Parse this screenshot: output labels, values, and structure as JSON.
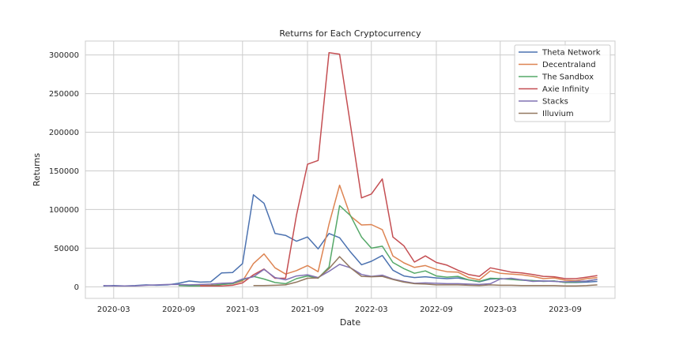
{
  "chart_data": {
    "type": "line",
    "title": "Returns for Each Cryptocurrency",
    "xlabel": "Date",
    "ylabel": "Returns",
    "ylim": [
      -15000,
      318000
    ],
    "xlim": [
      "2020-01-01",
      "2023-12-31"
    ],
    "grid": true,
    "legend_position": "top-right",
    "x_ticks": [
      "2020-03",
      "2020-09",
      "2021-03",
      "2021-09",
      "2022-03",
      "2022-09",
      "2023-03",
      "2023-09"
    ],
    "y_ticks": [
      0,
      50000,
      100000,
      150000,
      200000,
      250000,
      300000
    ],
    "y_tick_labels": [
      "0",
      "50000",
      "100000",
      "150000",
      "200000",
      "250000",
      "300000"
    ],
    "series": [
      {
        "name": "Theta Network",
        "color": "#4c72b0",
        "points": [
          [
            "2020-02-01",
            1000
          ],
          [
            "2020-03-01",
            1500
          ],
          [
            "2020-04-01",
            1000
          ],
          [
            "2020-05-01",
            1500
          ],
          [
            "2020-06-01",
            2500
          ],
          [
            "2020-07-01",
            2000
          ],
          [
            "2020-08-01",
            2500
          ],
          [
            "2020-09-01",
            4500
          ],
          [
            "2020-10-01",
            7500
          ],
          [
            "2020-11-01",
            6000
          ],
          [
            "2020-12-01",
            6500
          ],
          [
            "2021-01-01",
            18000
          ],
          [
            "2021-02-01",
            18500
          ],
          [
            "2021-03-01",
            30000
          ],
          [
            "2021-04-01",
            119000
          ],
          [
            "2021-05-01",
            108000
          ],
          [
            "2021-06-01",
            69000
          ],
          [
            "2021-07-01",
            66500
          ],
          [
            "2021-08-01",
            59000
          ],
          [
            "2021-09-01",
            64500
          ],
          [
            "2021-10-01",
            49000
          ],
          [
            "2021-11-01",
            69000
          ],
          [
            "2021-12-01",
            63500
          ],
          [
            "2022-01-01",
            45000
          ],
          [
            "2022-02-01",
            28500
          ],
          [
            "2022-03-01",
            33000
          ],
          [
            "2022-04-01",
            40500
          ],
          [
            "2022-05-01",
            21500
          ],
          [
            "2022-06-01",
            14000
          ],
          [
            "2022-07-01",
            12000
          ],
          [
            "2022-08-01",
            13000
          ],
          [
            "2022-09-01",
            11500
          ],
          [
            "2022-10-01",
            10500
          ],
          [
            "2022-11-01",
            11500
          ],
          [
            "2022-12-01",
            9000
          ],
          [
            "2023-01-01",
            6500
          ],
          [
            "2023-02-01",
            10000
          ],
          [
            "2023-03-01",
            10500
          ],
          [
            "2023-04-01",
            10000
          ],
          [
            "2023-05-01",
            9000
          ],
          [
            "2023-06-01",
            8000
          ],
          [
            "2023-07-01",
            7500
          ],
          [
            "2023-08-01",
            7500
          ],
          [
            "2023-09-01",
            5500
          ],
          [
            "2023-10-01",
            5500
          ],
          [
            "2023-11-01",
            6000
          ],
          [
            "2023-12-01",
            7000
          ]
        ]
      },
      {
        "name": "Decentraland",
        "color": "#dd8452",
        "points": [
          [
            "2020-09-01",
            1500
          ],
          [
            "2020-10-01",
            1500
          ],
          [
            "2020-11-01",
            1500
          ],
          [
            "2020-12-01",
            2000
          ],
          [
            "2021-01-01",
            3000
          ],
          [
            "2021-02-01",
            4000
          ],
          [
            "2021-03-01",
            7500
          ],
          [
            "2021-04-01",
            30000
          ],
          [
            "2021-05-01",
            42500
          ],
          [
            "2021-06-01",
            24500
          ],
          [
            "2021-07-01",
            16500
          ],
          [
            "2021-08-01",
            21000
          ],
          [
            "2021-09-01",
            27500
          ],
          [
            "2021-10-01",
            19500
          ],
          [
            "2021-11-01",
            81000
          ],
          [
            "2021-12-01",
            131500
          ],
          [
            "2022-01-01",
            91500
          ],
          [
            "2022-02-01",
            80000
          ],
          [
            "2022-03-01",
            80500
          ],
          [
            "2022-04-01",
            74000
          ],
          [
            "2022-05-01",
            40000
          ],
          [
            "2022-06-01",
            31000
          ],
          [
            "2022-07-01",
            25000
          ],
          [
            "2022-08-01",
            27500
          ],
          [
            "2022-09-01",
            22500
          ],
          [
            "2022-10-01",
            19500
          ],
          [
            "2022-11-01",
            19000
          ],
          [
            "2022-12-01",
            12000
          ],
          [
            "2023-01-01",
            9000
          ],
          [
            "2023-02-01",
            20500
          ],
          [
            "2023-03-01",
            17500
          ],
          [
            "2023-04-01",
            16500
          ],
          [
            "2023-05-01",
            15500
          ],
          [
            "2023-06-01",
            13500
          ],
          [
            "2023-07-01",
            10500
          ],
          [
            "2023-08-01",
            11500
          ],
          [
            "2023-09-01",
            8500
          ],
          [
            "2023-10-01",
            8000
          ],
          [
            "2023-11-01",
            10500
          ],
          [
            "2023-12-01",
            12000
          ]
        ]
      },
      {
        "name": "The Sandbox",
        "color": "#55a868",
        "points": [
          [
            "2020-09-01",
            1500
          ],
          [
            "2020-10-01",
            1000
          ],
          [
            "2020-11-01",
            1000
          ],
          [
            "2020-12-01",
            1500
          ],
          [
            "2021-01-01",
            3000
          ],
          [
            "2021-02-01",
            4000
          ],
          [
            "2021-03-01",
            9000
          ],
          [
            "2021-04-01",
            13500
          ],
          [
            "2021-05-01",
            10000
          ],
          [
            "2021-06-01",
            5500
          ],
          [
            "2021-07-01",
            4000
          ],
          [
            "2021-08-01",
            10500
          ],
          [
            "2021-09-01",
            14000
          ],
          [
            "2021-10-01",
            11000
          ],
          [
            "2021-11-01",
            25500
          ],
          [
            "2021-12-01",
            105000
          ],
          [
            "2022-01-01",
            92000
          ],
          [
            "2022-02-01",
            64500
          ],
          [
            "2022-03-01",
            50000
          ],
          [
            "2022-04-01",
            52500
          ],
          [
            "2022-05-01",
            31500
          ],
          [
            "2022-06-01",
            23500
          ],
          [
            "2022-07-01",
            17500
          ],
          [
            "2022-08-01",
            20500
          ],
          [
            "2022-09-01",
            14000
          ],
          [
            "2022-10-01",
            12500
          ],
          [
            "2022-11-01",
            13500
          ],
          [
            "2022-12-01",
            9000
          ],
          [
            "2023-01-01",
            7000
          ],
          [
            "2023-02-01",
            11000
          ],
          [
            "2023-03-01",
            10500
          ],
          [
            "2023-04-01",
            9500
          ],
          [
            "2023-05-01",
            8500
          ],
          [
            "2023-06-01",
            8000
          ],
          [
            "2023-07-01",
            7000
          ],
          [
            "2023-08-01",
            7500
          ],
          [
            "2023-09-01",
            5500
          ],
          [
            "2023-10-01",
            6000
          ],
          [
            "2023-11-01",
            7500
          ],
          [
            "2023-12-01",
            9500
          ]
        ]
      },
      {
        "name": "Axie Infinity",
        "color": "#c44e52",
        "points": [
          [
            "2020-11-01",
            1000
          ],
          [
            "2020-12-01",
            1000
          ],
          [
            "2021-01-01",
            1000
          ],
          [
            "2021-02-01",
            2000
          ],
          [
            "2021-03-01",
            5000
          ],
          [
            "2021-04-01",
            15500
          ],
          [
            "2021-05-01",
            23000
          ],
          [
            "2021-06-01",
            11000
          ],
          [
            "2021-07-01",
            11000
          ],
          [
            "2021-08-01",
            93000
          ],
          [
            "2021-09-01",
            158500
          ],
          [
            "2021-10-01",
            163500
          ],
          [
            "2021-11-01",
            303000
          ],
          [
            "2021-12-01",
            301000
          ],
          [
            "2022-01-01",
            209000
          ],
          [
            "2022-02-01",
            115000
          ],
          [
            "2022-03-01",
            120000
          ],
          [
            "2022-04-01",
            139500
          ],
          [
            "2022-05-01",
            64500
          ],
          [
            "2022-06-01",
            53000
          ],
          [
            "2022-07-01",
            32000
          ],
          [
            "2022-08-01",
            40000
          ],
          [
            "2022-09-01",
            31500
          ],
          [
            "2022-10-01",
            28000
          ],
          [
            "2022-11-01",
            21500
          ],
          [
            "2022-12-01",
            16000
          ],
          [
            "2023-01-01",
            13500
          ],
          [
            "2023-02-01",
            24500
          ],
          [
            "2023-03-01",
            22000
          ],
          [
            "2023-04-01",
            19000
          ],
          [
            "2023-05-01",
            18000
          ],
          [
            "2023-06-01",
            16000
          ],
          [
            "2023-07-01",
            13500
          ],
          [
            "2023-08-01",
            13000
          ],
          [
            "2023-09-01",
            10500
          ],
          [
            "2023-10-01",
            10500
          ],
          [
            "2023-11-01",
            12500
          ],
          [
            "2023-12-01",
            14500
          ]
        ]
      },
      {
        "name": "Stacks",
        "color": "#8172b3",
        "points": [
          [
            "2020-02-01",
            1500
          ],
          [
            "2020-03-01",
            1000
          ],
          [
            "2020-04-01",
            1000
          ],
          [
            "2020-05-01",
            1000
          ],
          [
            "2020-06-01",
            2000
          ],
          [
            "2020-07-01",
            2500
          ],
          [
            "2020-08-01",
            3000
          ],
          [
            "2020-09-01",
            3000
          ],
          [
            "2020-10-01",
            2500
          ],
          [
            "2020-11-01",
            3000
          ],
          [
            "2020-12-01",
            3500
          ],
          [
            "2021-01-01",
            4500
          ],
          [
            "2021-02-01",
            5000
          ],
          [
            "2021-03-01",
            10000
          ],
          [
            "2021-04-01",
            13000
          ],
          [
            "2021-05-01",
            22500
          ],
          [
            "2021-06-01",
            12000
          ],
          [
            "2021-07-01",
            9000
          ],
          [
            "2021-08-01",
            14000
          ],
          [
            "2021-09-01",
            15500
          ],
          [
            "2021-10-01",
            12000
          ],
          [
            "2021-11-01",
            20000
          ],
          [
            "2021-12-01",
            29000
          ],
          [
            "2022-01-01",
            24500
          ],
          [
            "2022-02-01",
            16000
          ],
          [
            "2022-03-01",
            13500
          ],
          [
            "2022-04-01",
            15000
          ],
          [
            "2022-05-01",
            10000
          ],
          [
            "2022-06-01",
            7000
          ],
          [
            "2022-07-01",
            4500
          ],
          [
            "2022-08-01",
            5000
          ],
          [
            "2022-09-01",
            4500
          ],
          [
            "2022-10-01",
            4000
          ],
          [
            "2022-11-01",
            4000
          ],
          [
            "2022-12-01",
            3500
          ],
          [
            "2023-01-01",
            3000
          ],
          [
            "2023-02-01",
            4000
          ],
          [
            "2023-03-01",
            10000
          ],
          [
            "2023-04-01",
            11000
          ],
          [
            "2023-05-01",
            9000
          ],
          [
            "2023-06-01",
            7000
          ],
          [
            "2023-07-01",
            7500
          ],
          [
            "2023-08-01",
            7000
          ],
          [
            "2023-09-01",
            6500
          ],
          [
            "2023-10-01",
            7000
          ],
          [
            "2023-11-01",
            7500
          ],
          [
            "2023-12-01",
            9500
          ]
        ]
      },
      {
        "name": "Illuvium",
        "color": "#937860",
        "points": [
          [
            "2021-04-01",
            1500
          ],
          [
            "2021-05-01",
            1500
          ],
          [
            "2021-06-01",
            2000
          ],
          [
            "2021-07-01",
            2500
          ],
          [
            "2021-08-01",
            6000
          ],
          [
            "2021-09-01",
            11000
          ],
          [
            "2021-10-01",
            11500
          ],
          [
            "2021-11-01",
            23500
          ],
          [
            "2021-12-01",
            39000
          ],
          [
            "2022-01-01",
            24500
          ],
          [
            "2022-02-01",
            13500
          ],
          [
            "2022-03-01",
            13000
          ],
          [
            "2022-04-01",
            13500
          ],
          [
            "2022-05-01",
            9500
          ],
          [
            "2022-06-01",
            6000
          ],
          [
            "2022-07-01",
            4000
          ],
          [
            "2022-08-01",
            3500
          ],
          [
            "2022-09-01",
            2500
          ],
          [
            "2022-10-01",
            2500
          ],
          [
            "2022-11-01",
            2500
          ],
          [
            "2022-12-01",
            2000
          ],
          [
            "2023-01-01",
            1500
          ],
          [
            "2023-02-01",
            2500
          ],
          [
            "2023-03-01",
            2000
          ],
          [
            "2023-04-01",
            2000
          ],
          [
            "2023-05-01",
            1500
          ],
          [
            "2023-06-01",
            1500
          ],
          [
            "2023-07-01",
            1500
          ],
          [
            "2023-08-01",
            1500
          ],
          [
            "2023-09-01",
            1000
          ],
          [
            "2023-10-01",
            1000
          ],
          [
            "2023-11-01",
            1500
          ],
          [
            "2023-12-01",
            2500
          ]
        ]
      }
    ]
  }
}
